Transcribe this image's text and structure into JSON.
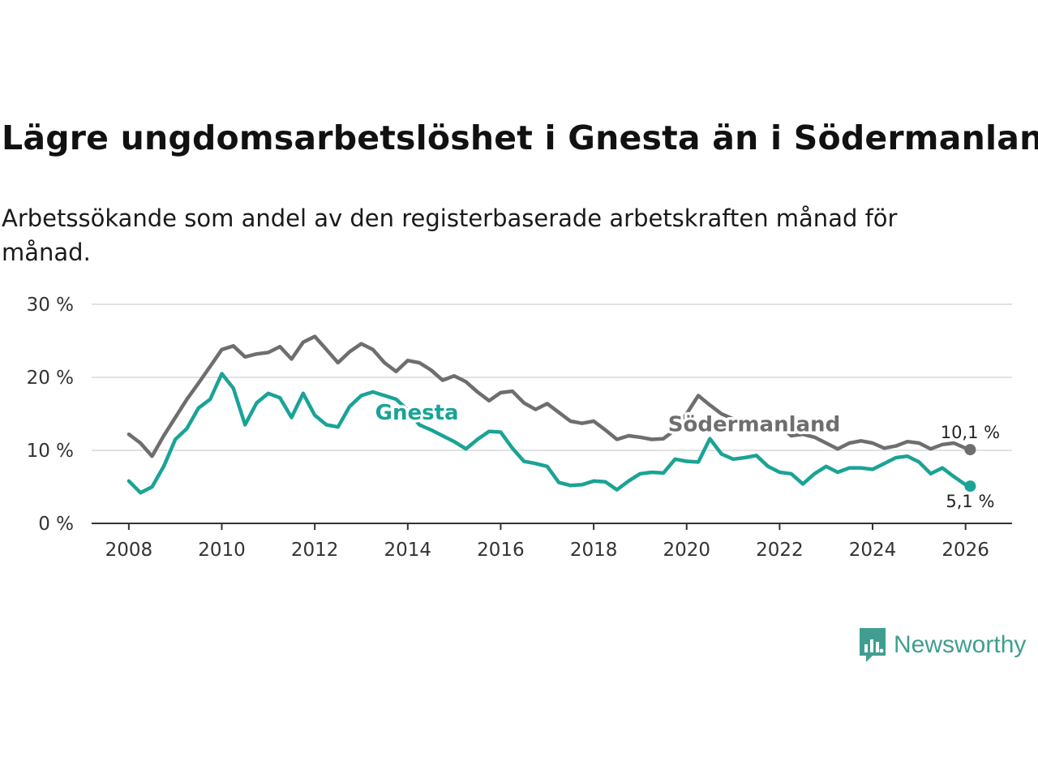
{
  "title": "Lägre ungdomsarbetslöshet i Gnesta än i Södermanland",
  "subtitle": "Arbetssökande som andel av den registerbaserade arbetskraften månad för månad.",
  "brand": {
    "name": "Newsworthy",
    "color": "#3f9e8f"
  },
  "chart_data": {
    "type": "line",
    "title": "Lägre ungdomsarbetslöshet i Gnesta än i Södermanland",
    "xlabel": "",
    "ylabel": "",
    "xlim": [
      2007.2,
      2027.0
    ],
    "ylim": [
      0,
      30
    ],
    "grid": true,
    "x_ticks": [
      {
        "value": 2008,
        "label": "2008"
      },
      {
        "value": 2010,
        "label": "2010"
      },
      {
        "value": 2012,
        "label": "2012"
      },
      {
        "value": 2014,
        "label": "2014"
      },
      {
        "value": 2016,
        "label": "2016"
      },
      {
        "value": 2018,
        "label": "2018"
      },
      {
        "value": 2020,
        "label": "2020"
      },
      {
        "value": 2022,
        "label": "2022"
      },
      {
        "value": 2024,
        "label": "2024"
      },
      {
        "value": 2026,
        "label": "2026"
      }
    ],
    "y_ticks": [
      {
        "value": 0,
        "label": "0 %"
      },
      {
        "value": 10,
        "label": "10 %"
      },
      {
        "value": 20,
        "label": "20 %"
      },
      {
        "value": 30,
        "label": "30 %"
      }
    ],
    "series": [
      {
        "name": "Södermanland",
        "color": "#6e6e70",
        "inline_label": "Södermanland",
        "label_anchor": [
          2019.6,
          12.6
        ],
        "end_label": "10,1 %",
        "x": [
          2008.0,
          2008.25,
          2008.5,
          2008.75,
          2009.0,
          2009.25,
          2009.5,
          2009.75,
          2010.0,
          2010.25,
          2010.5,
          2010.75,
          2011.0,
          2011.25,
          2011.5,
          2011.75,
          2012.0,
          2012.25,
          2012.5,
          2012.75,
          2013.0,
          2013.25,
          2013.5,
          2013.75,
          2014.0,
          2014.25,
          2014.5,
          2014.75,
          2015.0,
          2015.25,
          2015.5,
          2015.75,
          2016.0,
          2016.25,
          2016.5,
          2016.75,
          2017.0,
          2017.25,
          2017.5,
          2017.75,
          2018.0,
          2018.25,
          2018.5,
          2018.75,
          2019.0,
          2019.25,
          2019.5,
          2019.75,
          2020.0,
          2020.25,
          2020.5,
          2020.75,
          2021.0,
          2021.25,
          2021.5,
          2021.75,
          2022.0,
          2022.25,
          2022.5,
          2022.75,
          2023.0,
          2023.25,
          2023.5,
          2023.75,
          2024.0,
          2024.25,
          2024.5,
          2024.75,
          2025.0,
          2025.25,
          2025.5,
          2025.75,
          2026.0,
          2026.1
        ],
        "values": [
          12.2,
          11.0,
          9.2,
          12.0,
          14.5,
          17.0,
          19.2,
          21.5,
          23.8,
          24.3,
          22.8,
          23.2,
          23.4,
          24.2,
          22.5,
          24.8,
          25.6,
          23.8,
          22.0,
          23.5,
          24.6,
          23.8,
          22.0,
          20.8,
          22.3,
          22.0,
          21.0,
          19.6,
          20.2,
          19.4,
          18.0,
          16.8,
          17.9,
          18.1,
          16.5,
          15.6,
          16.4,
          15.2,
          14.0,
          13.7,
          14.0,
          12.8,
          11.5,
          12.0,
          11.8,
          11.5,
          11.6,
          12.8,
          15.0,
          17.5,
          16.2,
          15.0,
          14.3,
          14.0,
          13.4,
          13.0,
          13.4,
          12.0,
          12.2,
          11.8,
          11.0,
          10.2,
          11.0,
          11.3,
          11.0,
          10.3,
          10.6,
          11.2,
          11.0,
          10.2,
          10.8,
          11.0,
          10.3,
          10.1
        ]
      },
      {
        "name": "Gnesta",
        "color": "#1aa396",
        "inline_label": "Gnesta",
        "label_anchor": [
          2013.3,
          14.2
        ],
        "end_label": "5,1 %",
        "x": [
          2008.0,
          2008.25,
          2008.5,
          2008.75,
          2009.0,
          2009.25,
          2009.5,
          2009.75,
          2010.0,
          2010.25,
          2010.5,
          2010.75,
          2011.0,
          2011.25,
          2011.5,
          2011.75,
          2012.0,
          2012.25,
          2012.5,
          2012.75,
          2013.0,
          2013.25,
          2013.5,
          2013.75,
          2014.0,
          2014.25,
          2014.5,
          2014.75,
          2015.0,
          2015.25,
          2015.5,
          2015.75,
          2016.0,
          2016.25,
          2016.5,
          2016.75,
          2017.0,
          2017.25,
          2017.5,
          2017.75,
          2018.0,
          2018.25,
          2018.5,
          2018.75,
          2019.0,
          2019.25,
          2019.5,
          2019.75,
          2020.0,
          2020.25,
          2020.5,
          2020.75,
          2021.0,
          2021.25,
          2021.5,
          2021.75,
          2022.0,
          2022.25,
          2022.5,
          2022.75,
          2023.0,
          2023.25,
          2023.5,
          2023.75,
          2024.0,
          2024.25,
          2024.5,
          2024.75,
          2025.0,
          2025.25,
          2025.5,
          2025.75,
          2026.0,
          2026.1
        ],
        "values": [
          5.8,
          4.2,
          5.0,
          7.8,
          11.5,
          13.0,
          15.8,
          17.0,
          20.5,
          18.5,
          13.5,
          16.5,
          17.8,
          17.2,
          14.5,
          17.8,
          14.8,
          13.5,
          13.2,
          16.0,
          17.5,
          18.0,
          17.5,
          17.0,
          15.5,
          13.5,
          12.8,
          12.0,
          11.2,
          10.2,
          11.5,
          12.6,
          12.5,
          10.3,
          8.5,
          8.2,
          7.8,
          5.6,
          5.2,
          5.3,
          5.8,
          5.7,
          4.6,
          5.8,
          6.8,
          7.0,
          6.9,
          8.8,
          8.5,
          8.4,
          11.6,
          9.5,
          8.8,
          9.0,
          9.3,
          7.8,
          7.0,
          6.8,
          5.4,
          6.8,
          7.8,
          7.0,
          7.6,
          7.6,
          7.4,
          8.2,
          9.0,
          9.2,
          8.4,
          6.8,
          7.6,
          6.4,
          5.3,
          5.1
        ]
      }
    ]
  }
}
